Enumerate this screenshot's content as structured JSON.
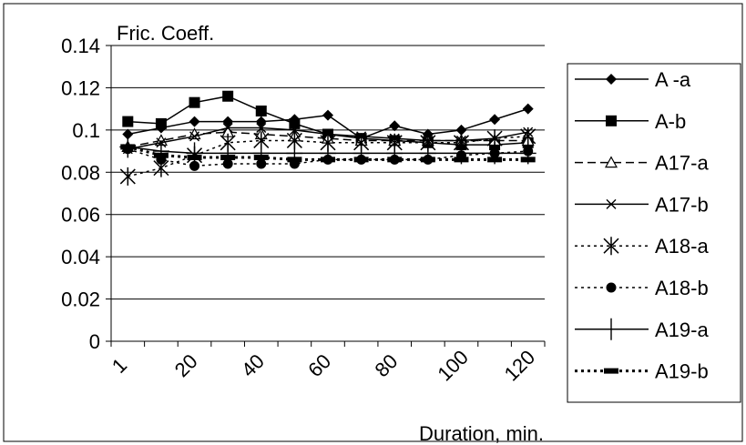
{
  "chart_data": {
    "type": "line",
    "title": "",
    "ylabel": "Fric. Coeff.",
    "xlabel": "Duration, min.",
    "ylim": [
      0,
      0.14
    ],
    "yticks": [
      "0",
      "0.02",
      "0.04",
      "0.06",
      "0.08",
      "0.1",
      "0.12",
      "0.14"
    ],
    "x": [
      1,
      10,
      20,
      30,
      40,
      50,
      60,
      70,
      80,
      90,
      100,
      110,
      120
    ],
    "xtick_labels": [
      "1",
      "20",
      "40",
      "60",
      "80",
      "100",
      "120"
    ],
    "grid": true,
    "legend_position": "right",
    "series": [
      {
        "name": "A -a",
        "marker": "diamond",
        "dash": "solid",
        "values": [
          0.098,
          0.101,
          0.104,
          0.104,
          0.104,
          0.105,
          0.107,
          0.096,
          0.102,
          0.098,
          0.1,
          0.105,
          0.11
        ]
      },
      {
        "name": "A-b",
        "marker": "square",
        "dash": "solid",
        "values": [
          0.104,
          0.103,
          0.113,
          0.116,
          0.109,
          0.103,
          0.098,
          0.096,
          0.095,
          0.094,
          0.093,
          0.093,
          0.094
        ]
      },
      {
        "name": "A17-a",
        "marker": "triangle",
        "dash": "dashed",
        "values": [
          0.092,
          0.095,
          0.098,
          0.099,
          0.098,
          0.097,
          0.096,
          0.095,
          0.095,
          0.095,
          0.095,
          0.095,
          0.095
        ]
      },
      {
        "name": "A17-b",
        "marker": "x",
        "dash": "solid",
        "values": [
          0.091,
          0.094,
          0.097,
          0.101,
          0.101,
          0.1,
          0.098,
          0.097,
          0.096,
          0.095,
          0.095,
          0.096,
          0.099
        ]
      },
      {
        "name": "A18-a",
        "marker": "asterisk",
        "dash": "dotted",
        "values": [
          0.078,
          0.082,
          0.088,
          0.094,
          0.095,
          0.095,
          0.094,
          0.094,
          0.094,
          0.094,
          0.094,
          0.096,
          0.097
        ]
      },
      {
        "name": "A18-b",
        "marker": "circle",
        "dash": "dotted",
        "values": [
          0.091,
          0.086,
          0.083,
          0.084,
          0.084,
          0.084,
          0.086,
          0.086,
          0.086,
          0.086,
          0.088,
          0.089,
          0.09
        ]
      },
      {
        "name": "A19-a",
        "marker": "plus",
        "dash": "solid",
        "values": [
          0.092,
          0.09,
          0.089,
          0.089,
          0.089,
          0.089,
          0.089,
          0.089,
          0.089,
          0.089,
          0.089,
          0.089,
          0.089
        ]
      },
      {
        "name": "A19-b",
        "marker": "dash",
        "dash": "dotted",
        "values": [
          0.092,
          0.088,
          0.087,
          0.087,
          0.087,
          0.086,
          0.086,
          0.086,
          0.086,
          0.086,
          0.086,
          0.086,
          0.086
        ]
      }
    ]
  }
}
